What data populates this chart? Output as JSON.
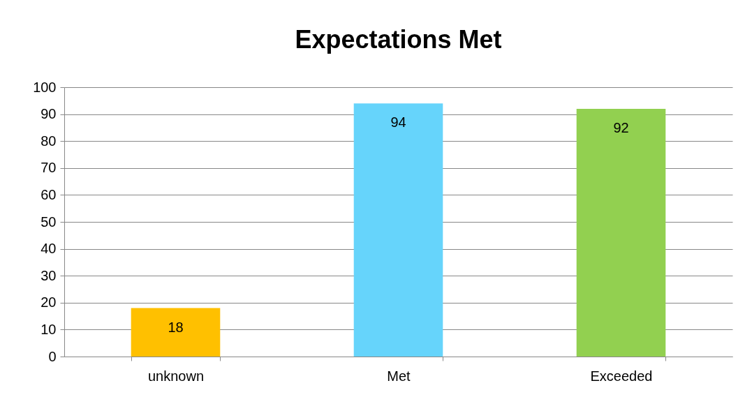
{
  "chart_data": {
    "type": "bar",
    "title": "Expectations Met",
    "categories": [
      "unknown",
      "Met",
      "Exceeded"
    ],
    "values": [
      18,
      94,
      92
    ],
    "colors": [
      "#ffc000",
      "#66d4fb",
      "#92d050"
    ],
    "ylim": [
      0,
      100
    ],
    "yticks": [
      0,
      10,
      20,
      30,
      40,
      50,
      60,
      70,
      80,
      90,
      100
    ],
    "grid": "y",
    "data_labels": true
  }
}
